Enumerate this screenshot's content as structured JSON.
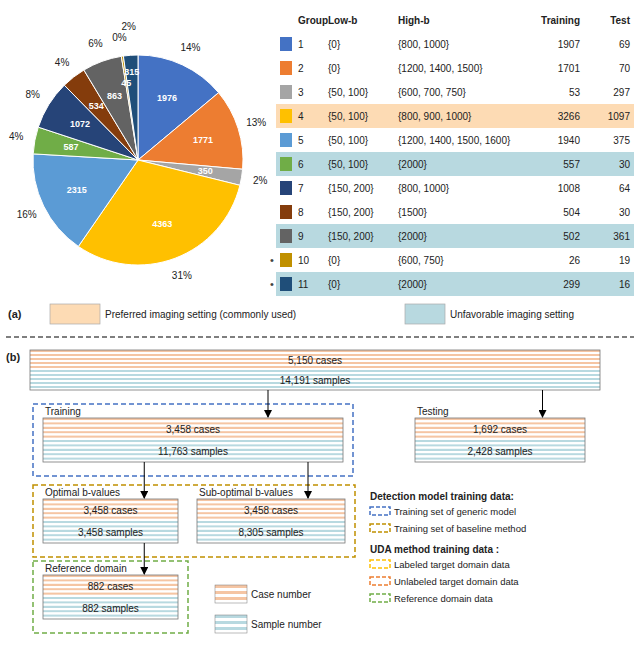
{
  "chart_data": [
    {
      "type": "pie",
      "values": [
        1976,
        1771,
        350,
        4363,
        2315,
        587,
        1072,
        534,
        863,
        45,
        315
      ],
      "colors": [
        "#4472C4",
        "#ED7D31",
        "#A5A5A5",
        "#FFC000",
        "#5B9BD5",
        "#70AD47",
        "#264478",
        "#843C0C",
        "#636363",
        "#C09000",
        "#1F4E79"
      ],
      "data_labels": true,
      "percent_labels": [
        "14%",
        "13%",
        "2%",
        "31%",
        "16%",
        "4%",
        "8%",
        "4%",
        "6%",
        "0%",
        "2%"
      ]
    },
    {
      "type": "table",
      "columns": [
        "Group",
        "Low-b",
        "High-b",
        "Training",
        "Test"
      ],
      "rows": [
        [
          "1",
          "{0}",
          "{800, 1000}",
          "1907",
          "69"
        ],
        [
          "2",
          "{0}",
          "{1200, 1400, 1500}",
          "1701",
          "70"
        ],
        [
          "3",
          "{50, 100}",
          "{600, 700, 750}",
          "53",
          "297"
        ],
        [
          "4",
          "{50, 100}",
          "{800, 900, 1000}",
          "3266",
          "1097"
        ],
        [
          "5",
          "{50, 100}",
          "{1200, 1400, 1500, 1600}",
          "1940",
          "375"
        ],
        [
          "6",
          "{50, 100}",
          "{2000}",
          "557",
          "30"
        ],
        [
          "7",
          "{150, 200}",
          "{800, 1000}",
          "1008",
          "64"
        ],
        [
          "8",
          "{150, 200}",
          "{1500}",
          "504",
          "30"
        ],
        [
          "9",
          "{150, 200}",
          "{2000}",
          "502",
          "361"
        ],
        [
          "10",
          "{0}",
          "{600, 750}",
          "26",
          "19"
        ],
        [
          "11",
          "{0}",
          "{2000}",
          "299",
          "16"
        ]
      ],
      "row_colors": [
        null,
        null,
        null,
        "#FDDBB4",
        null,
        "#B8D9E0",
        null,
        null,
        "#B8D9E0",
        null,
        "#B8D9E0"
      ],
      "colors": [
        "#4472C4",
        "#ED7D31",
        "#A5A5A5",
        "#FFC000",
        "#5B9BD5",
        "#70AD47",
        "#264478",
        "#843C0C",
        "#636363",
        "#C09000",
        "#1F4E79"
      ],
      "row_mark": "•",
      "row_marked": [
        false,
        false,
        false,
        false,
        false,
        false,
        false,
        false,
        false,
        true,
        true
      ],
      "key_label": "(a)",
      "key": [
        {
          "name": "Preferred imaging setting (commonly used)",
          "color": "#FDDBB4"
        },
        {
          "name": "Unfavorable imaging setting",
          "color": "#B8D9E0"
        }
      ]
    },
    {
      "type": "flowchart",
      "label": "(b)",
      "nodes": [
        {
          "cases": 5150,
          "cases_label": "5,150 cases",
          "samples": 14191,
          "samples_label": "14,191 samples",
          "children": [
            {
              "title": "Training",
              "color": "#4472C4",
              "cases": 3458,
              "cases_label": "3,458 cases",
              "samples": 11763,
              "samples_label": "11,763 samples",
              "children": [
                {
                  "title": "Optimal b-values",
                  "color": "#C09000",
                  "cases": 3458,
                  "cases_label": "3,458 cases",
                  "samples": 3458,
                  "samples_label": "3,458 samples",
                  "children": [
                    {
                      "title": "Reference domain",
                      "color": "#70AD47",
                      "cases": 882,
                      "cases_label": "882 cases",
                      "samples": 882,
                      "samples_label": "882 samples"
                    }
                  ]
                },
                {
                  "title": "Sub-optimal b-values",
                  "color": "#C09000",
                  "cases": 3458,
                  "cases_label": "3,458 cases",
                  "samples": 8305,
                  "samples_label": "8,305 samples"
                }
              ]
            },
            {
              "title": "Testing",
              "cases": 1692,
              "cases_label": "1,692 cases",
              "samples": 2428,
              "samples_label": "2,428 samples"
            }
          ]
        }
      ],
      "legend_groups": [
        {
          "title": "Detection model training data:",
          "entries": [
            {
              "name": "Training set of generic model",
              "color": "#4472C4"
            },
            {
              "name": "Training set of baseline method",
              "color": "#C09000"
            }
          ]
        },
        {
          "title": "UDA method training data :",
          "entries": [
            {
              "name": "Labeled target domain data",
              "color": "#FFC000"
            },
            {
              "name": "Unlabeled target domain data",
              "color": "#ED7D31"
            },
            {
              "name": "Reference domain data",
              "color": "#70AD47"
            }
          ]
        }
      ],
      "stripe_key": [
        {
          "name": "Case number",
          "color": "#F5C5A3"
        },
        {
          "name": "Sample number",
          "color": "#B8D9E0"
        }
      ]
    }
  ]
}
